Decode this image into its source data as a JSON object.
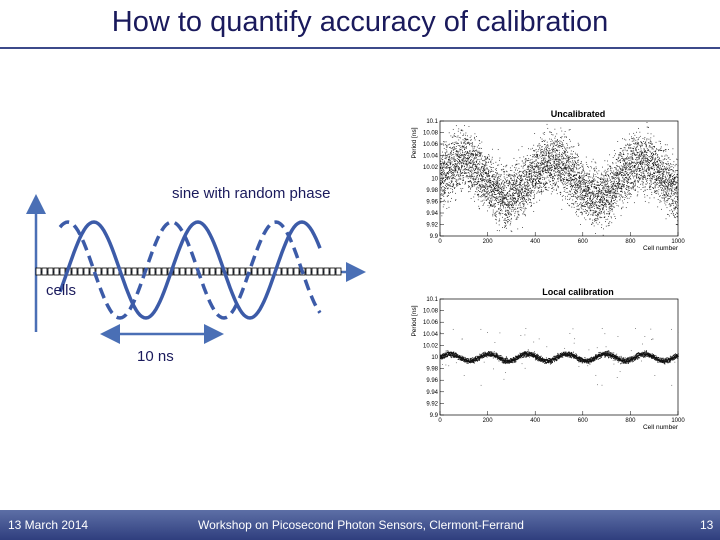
{
  "slide": {
    "title": "How to quantify accuracy of calibration",
    "label_sine": "sine with random phase",
    "label_cells": "cells",
    "label_period": "10 ns"
  },
  "footer": {
    "date": "13 March 2014",
    "event": "Workshop on Picosecond Photon Sensors, Clermont-Ferrand",
    "page": "13"
  },
  "chart_data": [
    {
      "type": "scatter",
      "title": "Uncalibrated",
      "xlabel": "Cell number",
      "ylabel": "Period [ns]",
      "xlim": [
        0,
        1000
      ],
      "ylim": [
        9.9,
        10.1
      ],
      "x_ticks": [
        "0",
        "200",
        "400",
        "600",
        "800",
        "1000"
      ],
      "y_ticks": [
        "9.9",
        "9.92",
        "9.94",
        "9.96",
        "9.98",
        "10",
        "10.02",
        "10.04",
        "10.06",
        "10.08",
        "10.1"
      ],
      "description_values": {
        "band_center": 10.0,
        "band_half_width": 0.08
      }
    },
    {
      "type": "scatter",
      "title": "Local calibration",
      "xlabel": "Cell number",
      "ylabel": "Period [ns]",
      "xlim": [
        0,
        1000
      ],
      "ylim": [
        9.9,
        10.1
      ],
      "x_ticks": [
        "0",
        "200",
        "400",
        "600",
        "800",
        "1000"
      ],
      "y_ticks": [
        "9.9",
        "9.92",
        "9.94",
        "9.96",
        "9.98",
        "10",
        "10.02",
        "10.04",
        "10.06",
        "10.08",
        "10.1"
      ],
      "description_values": {
        "band_center": 10.0,
        "band_half_width": 0.008
      }
    }
  ]
}
